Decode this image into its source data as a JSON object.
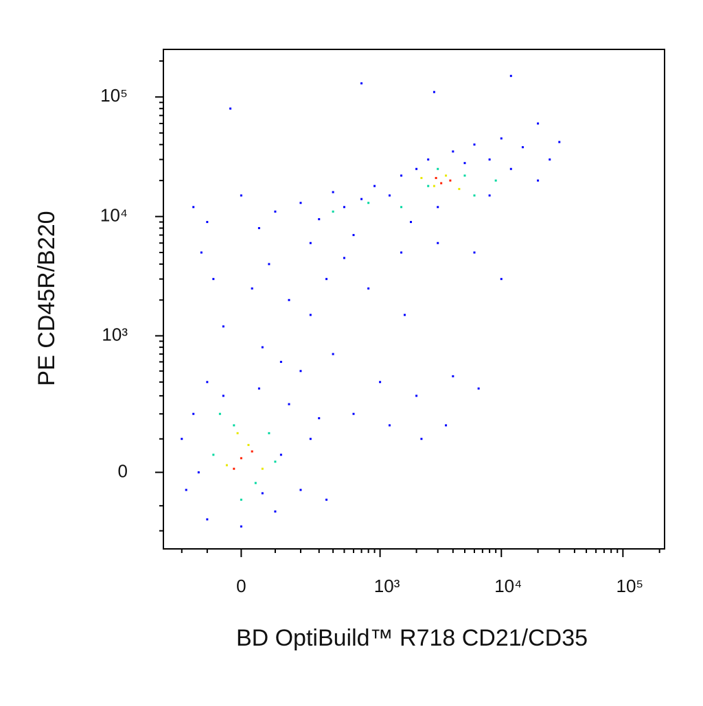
{
  "chart_data": {
    "type": "scatter",
    "xlabel": "BD OptiBuild™ R718 CD21/CD35",
    "ylabel": "PE CD45R/B220",
    "xscale": "biexponential",
    "yscale": "biexponential",
    "xlim": [
      -300,
      220000
    ],
    "ylim": [
      -300,
      250000
    ],
    "xticks": [
      0,
      {
        "value": 1000,
        "label": "10³"
      },
      {
        "value": 10000,
        "label": "10⁴"
      },
      {
        "value": 100000,
        "label": "10⁵"
      }
    ],
    "yticks": [
      0,
      {
        "value": 1000,
        "label": "10³"
      },
      {
        "value": 10000,
        "label": "10⁴"
      },
      {
        "value": 100000,
        "label": "10⁵"
      }
    ],
    "xminor": [
      -200,
      -100,
      100,
      200,
      300,
      400,
      500,
      600,
      700,
      800,
      900,
      2000,
      3000,
      4000,
      5000,
      6000,
      7000,
      8000,
      9000,
      20000,
      30000,
      40000,
      50000,
      60000,
      70000,
      80000,
      90000,
      200000
    ],
    "yminor": [
      -200,
      -100,
      100,
      200,
      300,
      400,
      500,
      600,
      700,
      800,
      900,
      2000,
      3000,
      4000,
      5000,
      6000,
      7000,
      8000,
      9000,
      20000,
      30000,
      40000,
      50000,
      60000,
      70000,
      80000,
      90000,
      200000
    ],
    "series": [
      {
        "color": "#0000ff",
        "x": [
          -150,
          -100,
          0,
          50,
          100,
          200,
          300,
          400,
          500,
          700,
          900,
          1200,
          1500,
          2000,
          2500,
          3000,
          4000,
          5000,
          6000,
          8000,
          10000,
          12000,
          15000,
          20000,
          25000,
          30000,
          8000,
          1800,
          600,
          250,
          -120,
          -80,
          30,
          80,
          150,
          250,
          350,
          500,
          800,
          1500,
          3000,
          6000,
          10000,
          1600,
          -50,
          60,
          120,
          -100,
          200,
          400,
          1000,
          2000,
          4000,
          6500,
          600,
          1200,
          2200,
          3500,
          -200,
          -180,
          -150,
          -100,
          -50,
          0,
          50,
          100,
          150,
          200,
          250,
          300,
          350,
          -130,
          120,
          60,
          -30,
          700,
          2800,
          12000,
          20000
        ],
        "values": [
          12000,
          9000,
          15000,
          8000,
          11000,
          13000,
          9500,
          16000,
          12000,
          14000,
          18000,
          15000,
          22000,
          25000,
          30000,
          12000,
          35000,
          28000,
          40000,
          30000,
          45000,
          25000,
          38000,
          20000,
          30000,
          42000,
          15000,
          9000,
          7000,
          6000,
          5000,
          3000,
          2500,
          4000,
          2000,
          1500,
          3000,
          4500,
          2500,
          5000,
          6000,
          5000,
          3000,
          1500,
          1200,
          800,
          600,
          400,
          500,
          700,
          400,
          300,
          450,
          350,
          200,
          150,
          100,
          150,
          100,
          -50,
          200,
          -150,
          300,
          -180,
          350,
          -120,
          250,
          -50,
          100,
          180,
          -80,
          0,
          50,
          -60,
          80000,
          130000,
          110000,
          150000,
          60000
        ]
      },
      {
        "color": "#00d8a0",
        "x": [
          -80,
          -20,
          40,
          80,
          -60,
          100,
          0,
          1500,
          2500,
          5000,
          6000,
          800,
          3000,
          9000,
          400
        ],
        "values": [
          50,
          150,
          -30,
          120,
          200,
          30,
          -80,
          12000,
          18000,
          22000,
          15000,
          13000,
          25000,
          20000,
          11000
        ]
      },
      {
        "color": "#e8e800",
        "x": [
          -40,
          20,
          60,
          -10,
          2800,
          3500,
          4500,
          2200
        ],
        "values": [
          20,
          80,
          10,
          120,
          18000,
          22000,
          17000,
          21000
        ]
      },
      {
        "color": "#ff2000",
        "x": [
          0,
          30,
          -20,
          3200,
          3800,
          2900
        ],
        "values": [
          40,
          60,
          10,
          19000,
          20000,
          21000
        ]
      }
    ]
  }
}
